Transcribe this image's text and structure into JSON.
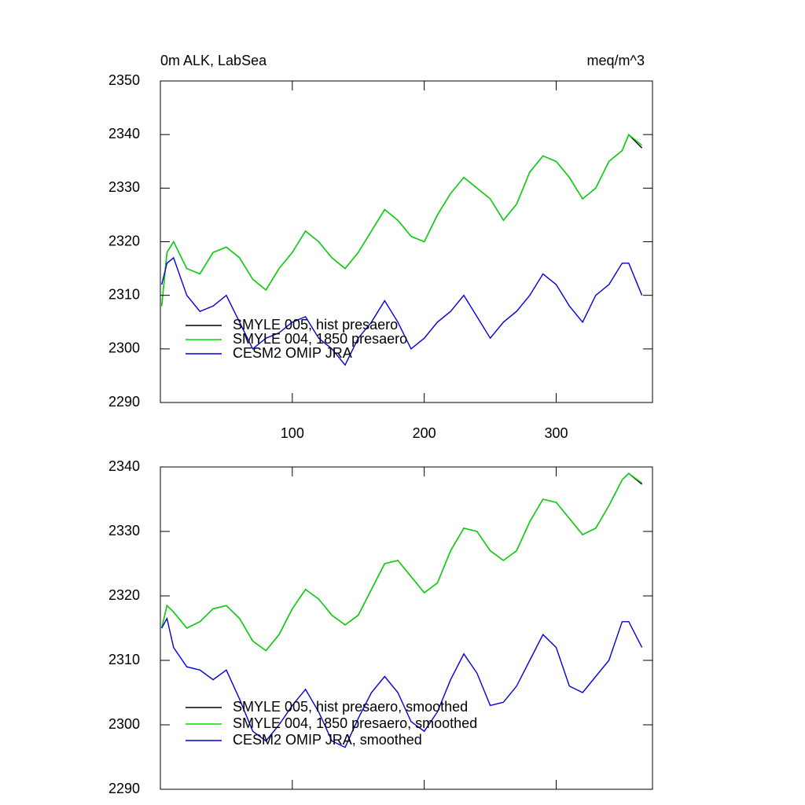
{
  "chart_data": [
    {
      "type": "line",
      "title": "0m ALK, LabSea",
      "units": "meq/m^3",
      "x": [
        1,
        5,
        10,
        20,
        30,
        40,
        50,
        60,
        70,
        80,
        90,
        100,
        110,
        120,
        130,
        140,
        150,
        160,
        170,
        180,
        190,
        200,
        210,
        220,
        230,
        240,
        250,
        260,
        270,
        280,
        290,
        300,
        310,
        320,
        330,
        340,
        350,
        355,
        365
      ],
      "xlim": [
        0,
        373
      ],
      "xticks": [
        100,
        200,
        300
      ],
      "ylim": [
        2290,
        2350
      ],
      "yticks": [
        2290,
        2300,
        2310,
        2320,
        2330,
        2340,
        2350
      ],
      "legend": "lower left",
      "series": [
        {
          "name": "SMYLE 005, hist presaero",
          "color": "#000000",
          "values": [
            2308,
            2318,
            2320,
            2315,
            2314,
            2318,
            2319,
            2317,
            2313,
            2311,
            2315,
            2318,
            2322,
            2320,
            2317,
            2315,
            2318,
            2322,
            2326,
            2324,
            2321,
            2320,
            2325,
            2329,
            2332,
            2330,
            2328,
            2324,
            2327,
            2333,
            2336,
            2335,
            2332,
            2328,
            2330,
            2335,
            2337,
            2340,
            2337.5
          ]
        },
        {
          "name": "SMYLE 004, 1850 presaero",
          "color": "#00dd00",
          "values": [
            2308,
            2318,
            2320,
            2315,
            2314,
            2318,
            2319,
            2317,
            2313,
            2311,
            2315,
            2318,
            2322,
            2320,
            2317,
            2315,
            2318,
            2322,
            2326,
            2324,
            2321,
            2320,
            2325,
            2329,
            2332,
            2330,
            2328,
            2324,
            2327,
            2333,
            2336,
            2335,
            2332,
            2328,
            2330,
            2335,
            2337,
            2340,
            2338
          ]
        },
        {
          "name": "CESM2 OMIP JRA",
          "color": "#0000dd",
          "values": [
            2312,
            2316,
            2317,
            2310,
            2307,
            2308,
            2310,
            2305,
            2300,
            2302,
            2303,
            2305,
            2306,
            2302,
            2300,
            2297,
            2302,
            2305,
            2309,
            2305,
            2300,
            2302,
            2305,
            2307,
            2310,
            2306,
            2302,
            2305,
            2307,
            2310,
            2314,
            2312,
            2308,
            2305,
            2310,
            2312,
            2316,
            2316,
            2310
          ]
        }
      ]
    },
    {
      "type": "line",
      "x": [
        1,
        5,
        10,
        20,
        30,
        40,
        50,
        60,
        70,
        80,
        90,
        100,
        110,
        120,
        130,
        140,
        150,
        160,
        170,
        180,
        190,
        200,
        210,
        220,
        230,
        240,
        250,
        260,
        270,
        280,
        290,
        300,
        310,
        320,
        330,
        340,
        350,
        355,
        365
      ],
      "xlim": [
        0,
        373
      ],
      "xticks": [
        100,
        200,
        300
      ],
      "ylim": [
        2290,
        2340
      ],
      "yticks": [
        2290,
        2300,
        2310,
        2320,
        2330,
        2340
      ],
      "legend": "lower left",
      "series": [
        {
          "name": "SMYLE 005, hist presaero, smoothed",
          "color": "#000000",
          "values": [
            2315,
            2318.5,
            2317.5,
            2315,
            2316,
            2318,
            2318.5,
            2316.5,
            2313,
            2311.5,
            2314,
            2318,
            2321,
            2319.5,
            2317,
            2315.5,
            2317,
            2321,
            2325,
            2325.5,
            2323,
            2320.5,
            2322,
            2327,
            2330.5,
            2330,
            2327,
            2325.5,
            2327,
            2331.5,
            2335,
            2334.5,
            2332,
            2329.5,
            2330.5,
            2334,
            2338,
            2339,
            2337.3
          ]
        },
        {
          "name": "SMYLE 004, 1850 presaero, smoothed",
          "color": "#00dd00",
          "values": [
            2315,
            2318.5,
            2317.5,
            2315,
            2316,
            2318,
            2318.5,
            2316.5,
            2313,
            2311.5,
            2314,
            2318,
            2321,
            2319.5,
            2317,
            2315.5,
            2317,
            2321,
            2325,
            2325.5,
            2323,
            2320.5,
            2322,
            2327,
            2330.5,
            2330,
            2327,
            2325.5,
            2327,
            2331.5,
            2335,
            2334.5,
            2332,
            2329.5,
            2330.5,
            2334,
            2338,
            2339,
            2337.5
          ]
        },
        {
          "name": "CESM2 OMIP JRA, smoothed",
          "color": "#0000dd",
          "values": [
            2315,
            2316.5,
            2312,
            2309,
            2308.5,
            2307,
            2308.5,
            2304,
            2299,
            2297.5,
            2300,
            2303,
            2305.5,
            2302,
            2297.5,
            2296.5,
            2301,
            2305,
            2307.5,
            2305,
            2300.5,
            2299,
            2302,
            2307,
            2311,
            2308,
            2303,
            2303.5,
            2306,
            2310,
            2314,
            2312,
            2306,
            2305,
            2307.5,
            2310,
            2316,
            2316,
            2312
          ]
        }
      ]
    }
  ]
}
